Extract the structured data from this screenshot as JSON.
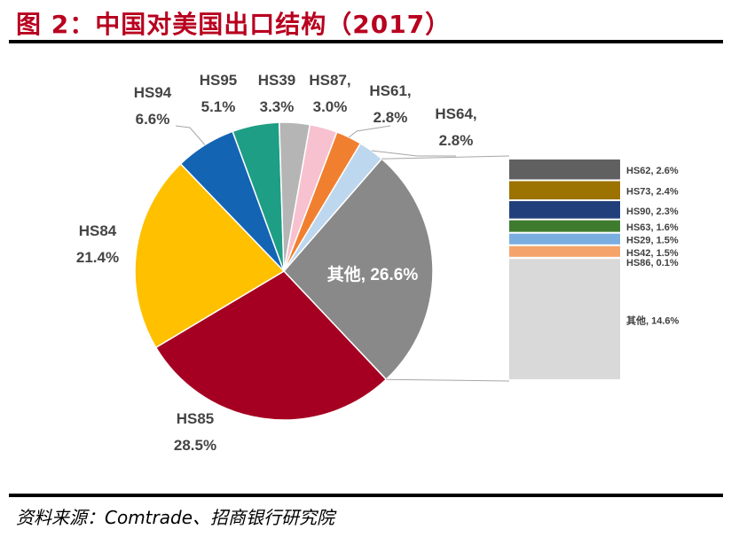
{
  "figure": {
    "title": "图 2：中国对美国出口结构（2017）",
    "source": "资料来源：Comtrade、招商银行研究院"
  },
  "chart_data": [
    {
      "type": "pie",
      "title": "中国对美国出口结构（2017）",
      "unit": "%",
      "slices": [
        {
          "label": "其他",
          "value": 26.6,
          "value_label": "26.6%",
          "color": "#898989"
        },
        {
          "label": "HS85",
          "value": 28.5,
          "value_label": "28.5%",
          "color": "#a50021"
        },
        {
          "label": "HS84",
          "value": 21.4,
          "value_label": "21.4%",
          "color": "#ffc000"
        },
        {
          "label": "HS94",
          "value": 6.6,
          "value_label": "6.6%",
          "color": "#1464b4"
        },
        {
          "label": "HS95",
          "value": 5.1,
          "value_label": "5.1%",
          "color": "#1e9e84"
        },
        {
          "label": "HS39",
          "value": 3.3,
          "value_label": "3.3%",
          "color": "#b5b5b5"
        },
        {
          "label": "HS87,",
          "value": 3.0,
          "value_label": "3.0%",
          "color": "#f7c1cf"
        },
        {
          "label": "HS61,",
          "value": 2.8,
          "value_label": "2.8%",
          "color": "#f08030"
        },
        {
          "label": "HS64,",
          "value": 2.8,
          "value_label": "2.8%",
          "color": "#bdd7ee"
        }
      ]
    },
    {
      "type": "bar",
      "orientation": "stacked-vertical",
      "description_of": "其他, 26.6%",
      "segments": [
        {
          "label": "HS62, 2.6%",
          "value": 2.6,
          "color": "#606060"
        },
        {
          "label": "HS73, 2.4%",
          "value": 2.4,
          "color": "#9c7200"
        },
        {
          "label": "HS90, 2.3%",
          "value": 2.3,
          "color": "#213f7a"
        },
        {
          "label": "HS63, 1.6%",
          "value": 1.6,
          "color": "#3e7b2e"
        },
        {
          "label": "HS29, 1.5%",
          "value": 1.5,
          "color": "#7aaee0"
        },
        {
          "label": "HS42, 1.5%",
          "value": 1.5,
          "color": "#f4a46a"
        },
        {
          "label": "HS86, 0.1%",
          "value": 0.1,
          "color": "#e0e0e0"
        },
        {
          "label": "其他, 14.6%",
          "value": 14.6,
          "color": "#d9d9d9"
        }
      ]
    }
  ]
}
